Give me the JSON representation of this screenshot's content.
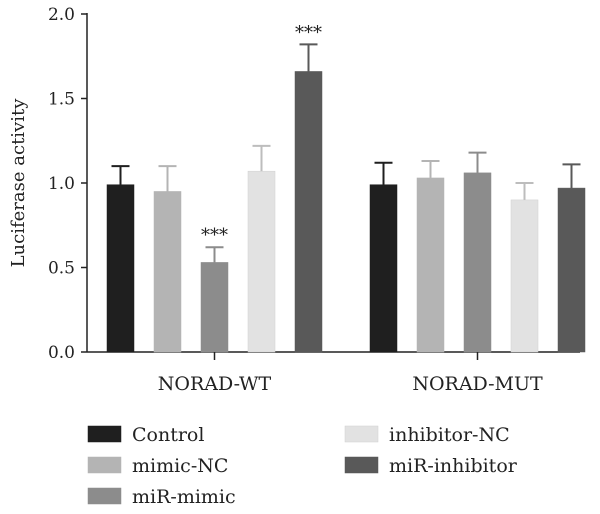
{
  "chart_data": {
    "type": "bar",
    "ylabel": "Luciferase activity",
    "xlabel": "",
    "ylim": [
      0,
      2.0
    ],
    "yticks": [
      "0.0",
      "0.5",
      "1.0",
      "1.5",
      "2.0"
    ],
    "categories": [
      "NORAD-WT",
      "NORAD-MUT"
    ],
    "series": [
      {
        "name": "Control",
        "color": "#1f1f1f",
        "values": [
          0.99,
          0.99
        ],
        "errors": [
          0.11,
          0.13
        ]
      },
      {
        "name": "mimic-NC",
        "color": "#b4b4b4",
        "values": [
          0.95,
          1.03
        ],
        "errors": [
          0.15,
          0.1
        ]
      },
      {
        "name": "miR-mimic",
        "color": "#8c8c8c",
        "values": [
          0.53,
          1.06
        ],
        "errors": [
          0.09,
          0.12
        ]
      },
      {
        "name": "inhibitor-NC",
        "color": "#e2e2e2",
        "values": [
          1.07,
          0.9
        ],
        "errors": [
          0.15,
          0.1
        ]
      },
      {
        "name": "miR-inhibitor",
        "color": "#595959",
        "values": [
          1.66,
          0.97
        ],
        "errors": [
          0.16,
          0.14
        ]
      }
    ],
    "annotations": [
      {
        "series": 2,
        "category": 0,
        "text": "***"
      },
      {
        "series": 4,
        "category": 0,
        "text": "***"
      }
    ],
    "legend_position": "bottom"
  }
}
